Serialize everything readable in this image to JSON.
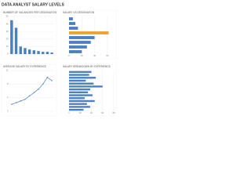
{
  "title": "DATA ANALYST SALARY LEVELS",
  "chart_data": [
    {
      "type": "bar",
      "title": "NUMBER OF VACANCIES PER DESIGNATION",
      "categories": [
        null,
        null,
        null,
        null,
        null,
        null,
        null,
        null,
        null,
        null
      ],
      "values": [
        45,
        35,
        10,
        8,
        6,
        5,
        4,
        3,
        3,
        2
      ],
      "color": "#4a7fc1",
      "ylim": [
        0,
        50
      ],
      "yticks": [
        0,
        10,
        20,
        30,
        40,
        50
      ],
      "grid": true
    },
    {
      "type": "barh",
      "title": "SALARY VS DESIGNATION",
      "categories": [
        null,
        null,
        null,
        null,
        null,
        null,
        null,
        null
      ],
      "values": [
        6,
        10,
        14,
        62,
        40,
        34,
        28,
        20
      ],
      "colors": [
        "#4a7fc1",
        "#4a7fc1",
        "#4a7fc1",
        "#f0a030",
        "#4a7fc1",
        "#4a7fc1",
        "#4a7fc1",
        "#4a7fc1"
      ],
      "xlim": [
        0,
        70
      ],
      "xticks": [
        0,
        20,
        40,
        60
      ],
      "grid": true
    },
    {
      "type": "line",
      "title": "AVERAGE SALARY BY EXPERIENCE",
      "categories": [
        null,
        null,
        null,
        null,
        null,
        null,
        null,
        null,
        null,
        null
      ],
      "values": [
        2,
        2.5,
        3,
        3.5,
        4.5,
        5.5,
        6.5,
        8,
        10,
        9
      ],
      "color": "#4a7fc1",
      "ylim": [
        0,
        12
      ],
      "yticks": [
        0,
        4,
        8,
        12
      ],
      "grid": true
    },
    {
      "type": "barh",
      "title": "SALARY BREAKDOWN BY EXPERIENCE",
      "categories": [
        null,
        null,
        null,
        null,
        null,
        null,
        null,
        null,
        null,
        null,
        null,
        null,
        null,
        null
      ],
      "values": [
        40,
        36,
        48,
        30,
        44,
        60,
        38,
        34,
        42,
        28,
        46,
        32,
        38,
        26
      ],
      "colors": [
        "#4a7fc1",
        "#4a7fc1",
        "#4a7fc1",
        "#4a7fc1",
        "#4a7fc1",
        "#4a7fc1",
        "#4a7fc1",
        "#4a7fc1",
        "#4a7fc1",
        "#4a7fc1",
        "#4a7fc1",
        "#4a7fc1",
        "#4a7fc1",
        "#4a7fc1"
      ],
      "xlim": [
        0,
        80
      ],
      "xticks": [
        0,
        20,
        40,
        60,
        80
      ],
      "grid": true
    }
  ]
}
